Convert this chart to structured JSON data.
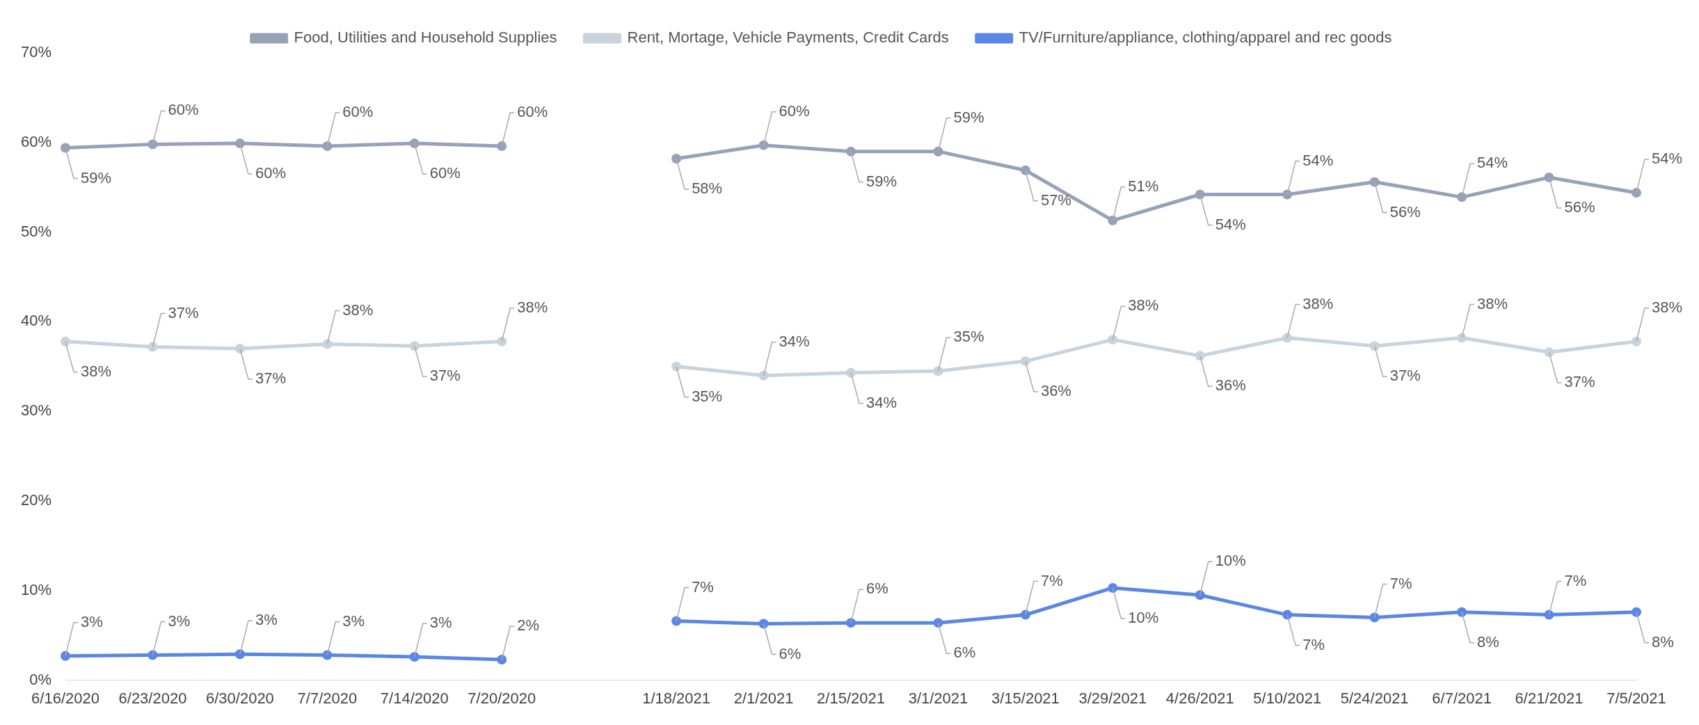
{
  "chart_data": {
    "type": "line",
    "categories": [
      "6/16/2020",
      "6/23/2020",
      "6/30/2020",
      "7/7/2020",
      "7/14/2020",
      "7/20/2020",
      null,
      "1/18/2021",
      "2/1/2021",
      "2/15/2021",
      "3/1/2021",
      "3/15/2021",
      "3/29/2021",
      "4/26/2021",
      "5/10/2021",
      "5/24/2021",
      "6/7/2021",
      "6/21/2021",
      "7/5/2021"
    ],
    "series": [
      {
        "name": "Food, Utilities and Household Supplies",
        "color": "#97a2b8",
        "values": [
          59.4,
          59.8,
          59.9,
          59.6,
          59.9,
          59.6,
          null,
          58.2,
          59.7,
          59.0,
          59.0,
          56.9,
          51.3,
          54.2,
          54.2,
          55.6,
          53.9,
          56.1,
          54.4
        ],
        "value_labels": [
          "59%",
          "60%",
          "60%",
          "60%",
          "60%",
          "60%",
          null,
          "58%",
          "60%",
          "59%",
          "59%",
          "57%",
          "51%",
          "54%",
          "54%",
          "56%",
          "54%",
          "56%",
          "54%"
        ]
      },
      {
        "name": "Rent, Mortage, Vehicle Payments, Credit Cards",
        "color": "#c8d3dc",
        "values": [
          37.8,
          37.2,
          37.0,
          37.5,
          37.3,
          37.8,
          null,
          35.0,
          34.0,
          34.3,
          34.5,
          35.6,
          38.0,
          36.2,
          38.2,
          37.3,
          38.2,
          36.6,
          37.8
        ],
        "value_labels": [
          "38%",
          "37%",
          "37%",
          "38%",
          "37%",
          "38%",
          null,
          "35%",
          "34%",
          "34%",
          "35%",
          "36%",
          "38%",
          "36%",
          "38%",
          "37%",
          "38%",
          "37%",
          "38%"
        ]
      },
      {
        "name": "TV/Furniture/appliance, clothing/apparel and rec goods",
        "color": "#5b86e5",
        "values": [
          2.7,
          2.8,
          2.9,
          2.8,
          2.6,
          2.3,
          null,
          6.6,
          6.3,
          6.4,
          6.4,
          7.3,
          10.3,
          9.5,
          7.3,
          7.0,
          7.6,
          7.3,
          7.6
        ],
        "value_labels": [
          "3%",
          "3%",
          "3%",
          "3%",
          "3%",
          "2%",
          null,
          "7%",
          "6%",
          "6%",
          "6%",
          "7%",
          "10%",
          "10%",
          "7%",
          "7%",
          "8%",
          "7%",
          "8%"
        ]
      }
    ],
    "ylim": [
      0,
      70
    ],
    "yticks": [
      {
        "value": 0,
        "label": "0%"
      },
      {
        "value": 10,
        "label": "10%"
      },
      {
        "value": 20,
        "label": "20%"
      },
      {
        "value": 30,
        "label": "30%"
      },
      {
        "value": 40,
        "label": "40%"
      },
      {
        "value": 50,
        "label": "50%"
      },
      {
        "value": 60,
        "label": "60%"
      },
      {
        "value": 70,
        "label": "70%"
      }
    ],
    "grid": false,
    "legend": "top",
    "marker": "circle",
    "line_style": "solid"
  }
}
